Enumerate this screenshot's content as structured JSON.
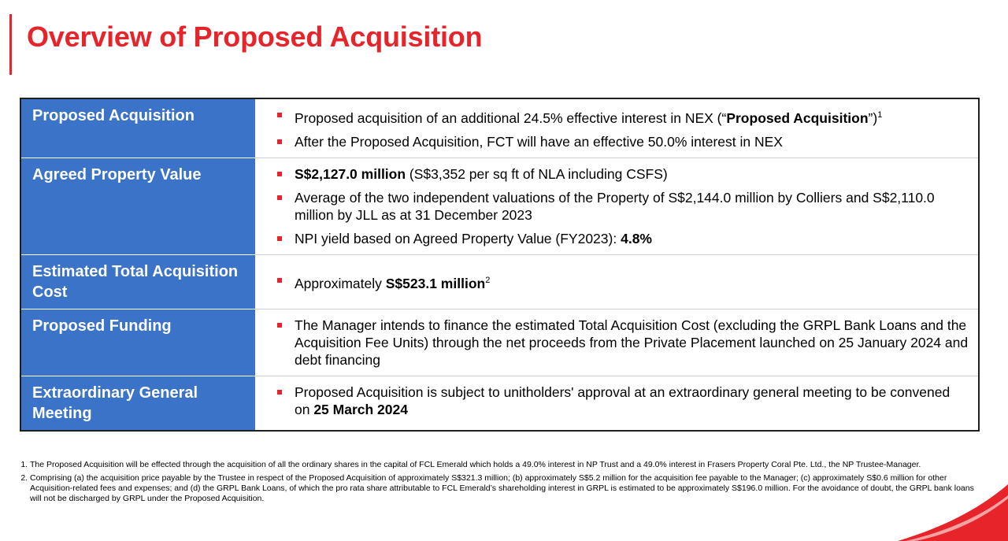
{
  "title": "Overview of Proposed Acquisition",
  "rows": [
    {
      "label": "Proposed Acquisition",
      "bullets": [
        {
          "t1": "Proposed acquisition of an additional 24.5% effective interest in NEX (“",
          "b1": "Proposed Acquisition",
          "t2": "”)",
          "sup": "1"
        },
        {
          "t1": "After the Proposed Acquisition, FCT will have an effective 50.0% interest in NEX"
        }
      ]
    },
    {
      "label": "Agreed Property Value",
      "bullets": [
        {
          "b1": "S$2,127.0 million",
          "t2": " (S$3,352 per sq ft of NLA including CSFS)"
        },
        {
          "t1": "Average of the two independent valuations of the Property of S$2,144.0 million by Colliers and S$2,110.0 million by JLL as at 31 December 2023"
        },
        {
          "t1": "NPI yield based on Agreed Property Value (FY2023): ",
          "b1": "4.8%"
        }
      ]
    },
    {
      "label": "Estimated Total Acquisition Cost",
      "bullets": [
        {
          "t1": "Approximately ",
          "b1": "S$523.1 million",
          "sup": "2"
        }
      ]
    },
    {
      "label": "Proposed Funding",
      "bullets": [
        {
          "t1": "The Manager intends to finance the estimated Total Acquisition Cost (excluding the GRPL Bank Loans and the Acquisition Fee Units) through the net proceeds from the Private Placement launched on 25 January 2024 and debt financing"
        }
      ]
    },
    {
      "label": "Extraordinary General Meeting",
      "bullets": [
        {
          "t1": "Proposed Acquisition is subject to unitholders' approval at an extraordinary general meeting to be convened on ",
          "b1": "25 March 2024"
        }
      ]
    }
  ],
  "footnotes": [
    "The Proposed Acquisition will be effected through the acquisition of all the ordinary shares in the capital of FCL Emerald which holds a 49.0% interest in NP Trust and a 49.0% interest in Frasers Property Coral Pte. Ltd., the NP Trustee-Manager.",
    "Comprising (a) the acquisition price payable by the Trustee in respect of the Proposed Acquisition of approximately S$321.3 million; (b) approximately S$5.2 million for the acquisition fee payable to the Manager; (c) approximately S$0.6 million for other Acquisition-related fees and expenses; and (d) the GRPL Bank Loans, of which the pro rata share attributable to FCL Emerald’s shareholding interest in GRPL is estimated to be approximately S$196.0 million. For the avoidance of doubt, the GRPL bank loans will not be discharged by GRPL under the Proposed Acquisition."
  ],
  "colors": {
    "accent": "#e8242b",
    "label_bg": "#3a73c7"
  }
}
